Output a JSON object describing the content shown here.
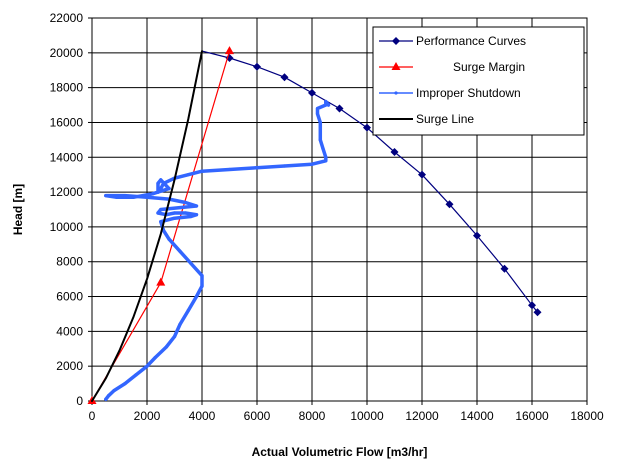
{
  "chart_data": {
    "type": "line",
    "title": "",
    "xlabel": "Actual Volumetric Flow [m3/hr]",
    "ylabel": "Head [m]",
    "xlim": [
      0,
      18000
    ],
    "ylim": [
      0,
      22000
    ],
    "x_ticks": [
      0,
      2000,
      4000,
      6000,
      8000,
      10000,
      12000,
      14000,
      16000,
      18000
    ],
    "y_ticks": [
      0,
      2000,
      4000,
      6000,
      8000,
      10000,
      12000,
      14000,
      16000,
      18000,
      20000,
      22000
    ],
    "x_tick_labels": [
      "0",
      "2000",
      "4000",
      "6000",
      "8000",
      "10000",
      "12000",
      "14000",
      "16000",
      "18000"
    ],
    "y_tick_labels": [
      "0",
      "2000",
      "4000",
      "6000",
      "8000",
      "10000",
      "12000",
      "14000",
      "16000",
      "18000",
      "20000",
      "22000"
    ],
    "grid": true,
    "legend_position": "top-right",
    "series": [
      {
        "name": "Performance Curves",
        "color": "#00007f",
        "marker": "diamond",
        "x": [
          4000,
          5000,
          6000,
          7000,
          8000,
          9000,
          10000,
          11000,
          12000,
          13000,
          14000,
          15000,
          16000,
          16200
        ],
        "y": [
          20100,
          19700,
          19200,
          18600,
          17700,
          16800,
          15700,
          14300,
          13000,
          11300,
          9500,
          7600,
          5500,
          5100
        ],
        "marker_x": [
          5000,
          6000,
          7000,
          8000,
          9000,
          10000,
          11000,
          12000,
          13000,
          14000,
          15000,
          16000,
          16200
        ],
        "marker_y": [
          19700,
          19200,
          18600,
          17700,
          16800,
          15700,
          14300,
          13000,
          11300,
          9500,
          7600,
          5500,
          5100
        ]
      },
      {
        "name": "Surge Margin",
        "color": "#ff0000",
        "marker": "triangle",
        "x": [
          0,
          2500,
          5000
        ],
        "y": [
          0,
          6800,
          20100
        ],
        "marker_x": [
          0,
          2500,
          5000
        ],
        "marker_y": [
          0,
          6800,
          20100
        ]
      },
      {
        "name": "Improper Shutdown",
        "color": "#3366ff",
        "marker": "small",
        "x": [
          8600,
          8500,
          8500,
          8200,
          8200,
          8300,
          8300,
          8400,
          8500,
          8500,
          8000,
          7000,
          6000,
          5000,
          4000,
          3500,
          3000,
          2600,
          2500,
          2400,
          2400,
          2500,
          2800,
          2200,
          1500,
          900,
          500,
          1200,
          2000,
          2800,
          3400,
          3800,
          2500,
          2400,
          2700,
          3000,
          3400,
          3800,
          3600,
          3000,
          2500,
          2600,
          2800,
          3200,
          3600,
          4000,
          4000,
          3800,
          3500,
          3200,
          3000,
          2700,
          2300,
          2000,
          1600,
          1200,
          800,
          600,
          500
        ],
        "y": [
          17000,
          17200,
          17000,
          16800,
          16500,
          16000,
          15000,
          14500,
          14000,
          13800,
          13600,
          13500,
          13400,
          13300,
          13200,
          13000,
          12800,
          12500,
          12200,
          12000,
          12500,
          12700,
          12200,
          11900,
          11700,
          11700,
          11800,
          11800,
          11700,
          11600,
          11400,
          11200,
          11000,
          10800,
          10700,
          10800,
          10800,
          10700,
          10600,
          10500,
          10300,
          9800,
          9300,
          8600,
          7900,
          7200,
          6600,
          6000,
          5200,
          4400,
          3700,
          3100,
          2500,
          2000,
          1500,
          1000,
          600,
          300,
          100
        ]
      },
      {
        "name": "Surge Line",
        "color": "#000000",
        "marker": "none",
        "x": [
          0,
          500,
          1000,
          1500,
          2000,
          2500,
          3000,
          3500,
          4000
        ],
        "y": [
          0,
          1300,
          2900,
          4800,
          7000,
          9600,
          12700,
          16200,
          20100
        ],
        "marker_x": [],
        "marker_y": []
      }
    ]
  }
}
